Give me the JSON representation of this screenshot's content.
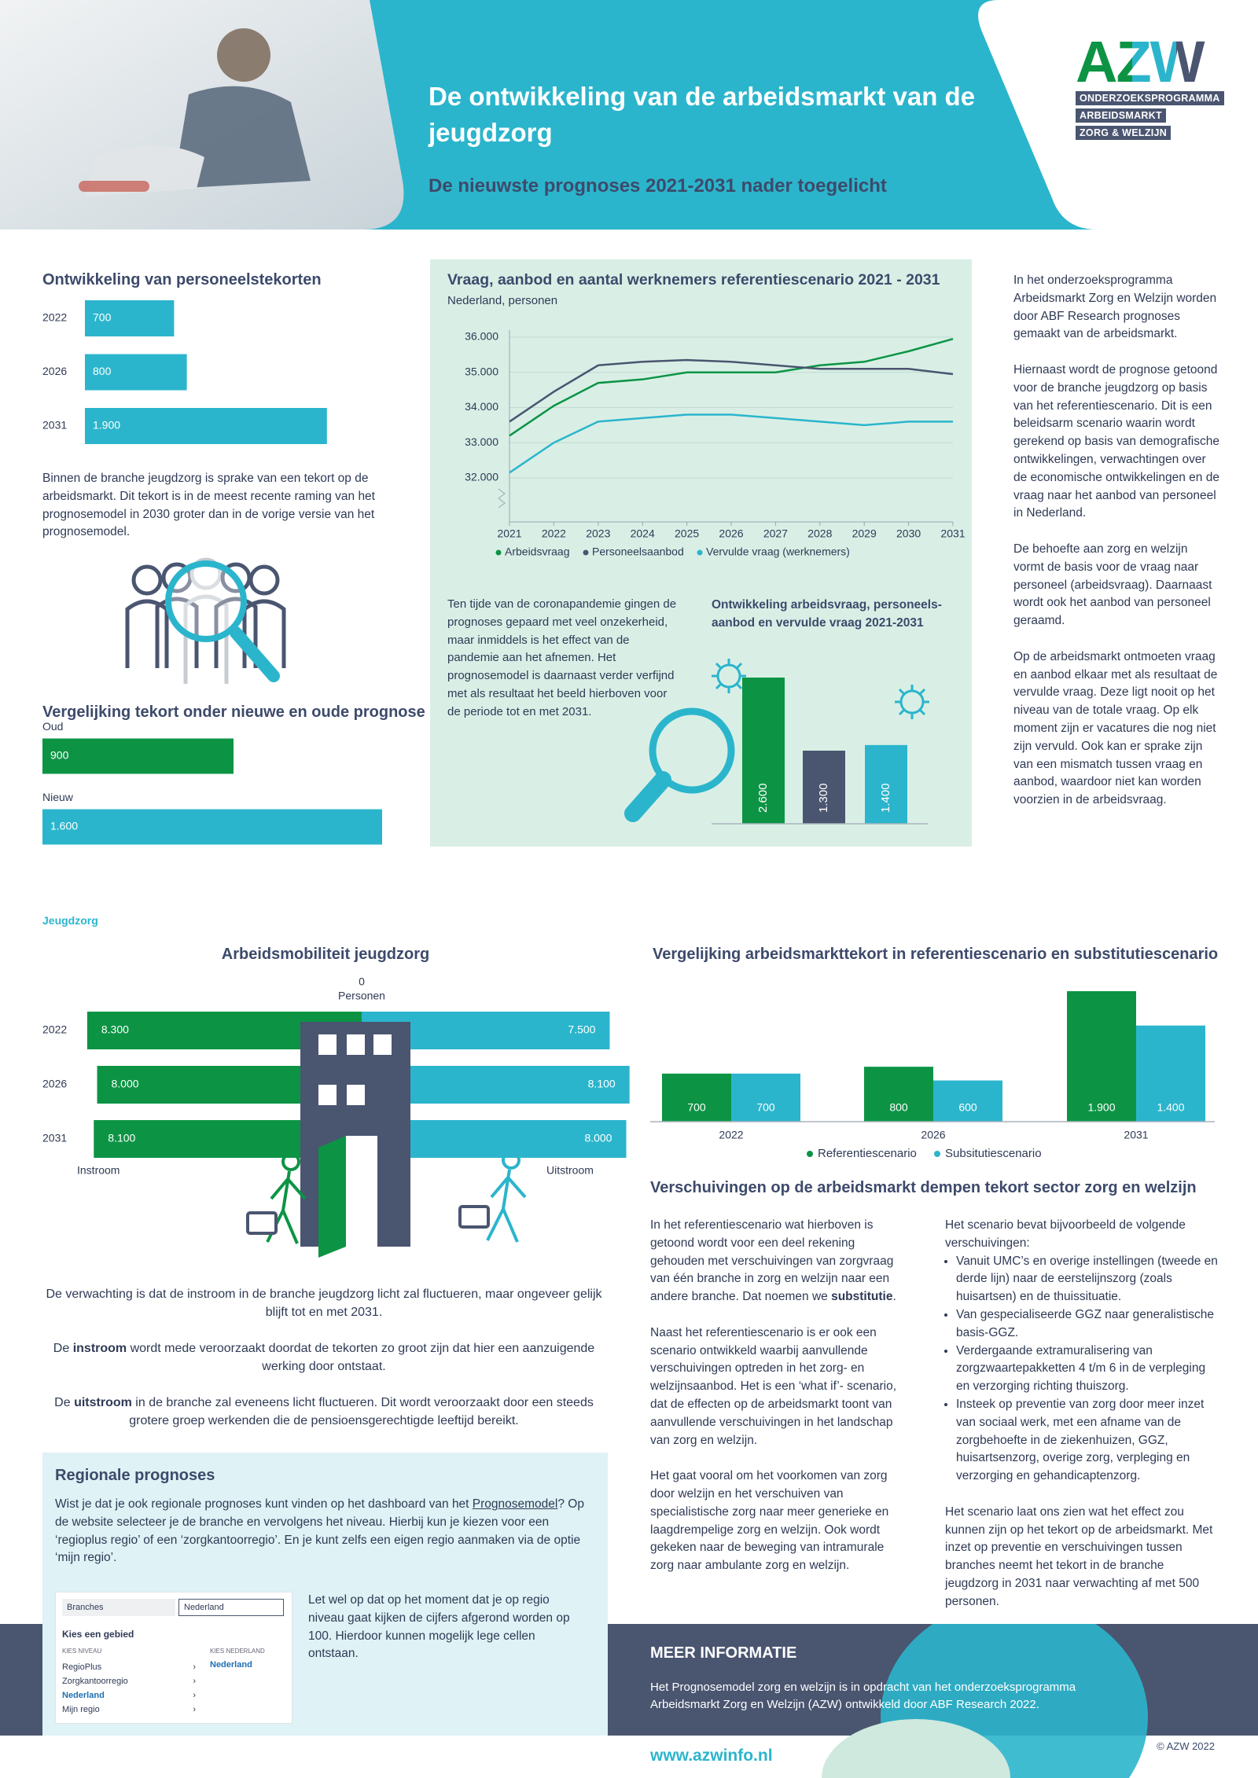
{
  "header": {
    "title": "De ontwikkeling van de arbeidsmarkt van de jeugdzorg",
    "subtitle": "De nieuwste prognoses 2021-2031 nader toegelicht"
  },
  "logo": {
    "mark": "AZW",
    "lines": [
      "ONDERZOEKSPROGRAMMA",
      "ARBEIDSMARKT",
      "ZORG & WELZIJN"
    ]
  },
  "chart_data": [
    {
      "type": "bar",
      "orientation": "horizontal",
      "title": "Ontwikkeling van personeelstekorten",
      "categories": [
        "2022",
        "2026",
        "2031"
      ],
      "values": [
        700,
        800,
        1900
      ],
      "value_labels": [
        "700",
        "800",
        "1.900"
      ],
      "color": "#2bb5cc"
    },
    {
      "type": "bar",
      "orientation": "horizontal",
      "title": "Vergelijking tekort onder nieuwe en oude prognose",
      "categories": [
        "Oud",
        "Nieuw"
      ],
      "values": [
        900,
        1600
      ],
      "value_labels": [
        "900",
        "1.600"
      ],
      "colors": [
        "#0c9444",
        "#2bb5cc"
      ]
    },
    {
      "type": "line",
      "title": "Vraag, aanbod en aantal werknemers referentiescenario 2021 - 2031",
      "subtitle": "Nederland, personen",
      "x": [
        2021,
        2022,
        2023,
        2024,
        2025,
        2026,
        2027,
        2028,
        2029,
        2030,
        2031
      ],
      "xlim": [
        2021,
        2031
      ],
      "ylim": [
        30750,
        36200
      ],
      "yticks": [
        {
          "value": 32000,
          "label": "32.000"
        },
        {
          "value": 33000,
          "label": "33.000"
        },
        {
          "value": 34000,
          "label": "34.000"
        },
        {
          "value": 35000,
          "label": "35.000"
        },
        {
          "value": 36000,
          "label": "36.000"
        }
      ],
      "grid": true,
      "series": [
        {
          "name": "Arbeidsvraag",
          "color": "#0c9444",
          "values": [
            33200,
            34050,
            34700,
            34800,
            35000,
            35000,
            35000,
            35200,
            35300,
            35600,
            35950
          ]
        },
        {
          "name": "Personeelsaanbod",
          "color": "#4a5570",
          "values": [
            33600,
            34450,
            35200,
            35300,
            35350,
            35300,
            35200,
            35100,
            35100,
            35100,
            34950
          ]
        },
        {
          "name": "Vervulde vraag (werknemers)",
          "color": "#2bb5cc",
          "values": [
            32150,
            33000,
            33600,
            33700,
            33800,
            33800,
            33700,
            33600,
            33500,
            33600,
            33600
          ]
        }
      ]
    },
    {
      "type": "bar",
      "title": "Ontwikkeling arbeidsvraag, personeels-aanbod en vervulde vraag 2021-2031",
      "values": [
        2600,
        1300,
        1400
      ],
      "value_labels": [
        "2.600",
        "1.300",
        "1.400"
      ],
      "colors": [
        "#0c9444",
        "#4a5570",
        "#2bb5cc"
      ]
    },
    {
      "type": "diverging-bar",
      "title": "Arbeidsmobiliteit jeugdzorg",
      "xlabel": "Personen",
      "xlim": [
        -9700,
        9700
      ],
      "xticks": [
        0
      ],
      "categories": [
        "2022",
        "2026",
        "2031"
      ],
      "series": [
        {
          "name": "Instroom",
          "color": "#0c9444",
          "values": [
            8300,
            8000,
            8100
          ],
          "value_labels": [
            "8.300",
            "8.000",
            "8.100"
          ]
        },
        {
          "name": "Uitstroom",
          "color": "#2bb5cc",
          "values": [
            7500,
            8100,
            8000
          ],
          "value_labels": [
            "7.500",
            "8.100",
            "8.000"
          ]
        }
      ]
    },
    {
      "type": "bar",
      "title": "Vergelijking arbeidsmarkttekort in referentiescenario en substitutiescenario",
      "categories": [
        "2022",
        "2026",
        "2031"
      ],
      "series": [
        {
          "name": "Referentiescenario",
          "color": "#0c9444",
          "values": [
            700,
            800,
            1900
          ],
          "value_labels": [
            "700",
            "800",
            "1.900"
          ]
        },
        {
          "name": "Subsitutiescenario",
          "color": "#2bb5cc",
          "values": [
            700,
            600,
            1400
          ],
          "value_labels": [
            "700",
            "600",
            "1.400"
          ]
        }
      ]
    }
  ],
  "texts": {
    "tekort": "Binnen de branche jeugdzorg is sprake van een tekort op de arbeidsmarkt. Dit tekort is in de meest recente raming van het prognosemodel in 2030 groter dan in de vorige versie van het prognosemodel.",
    "corona": "Ten tijde van de coronapandemie gingen de prognoses gepaard met veel onzekerheid, maar inmiddels is het effect van de pandemie aan het afnemen. Het prognosemodel is daarnaast verder verfijnd met als resultaat het beeld hierboven voor de periode tot en met 2031.",
    "about": [
      "In het onderzoeksprogramma Arbeidsmarkt Zorg en Welzijn worden door ABF Research prognoses gemaakt van de arbeidsmarkt.",
      "Hiernaast wordt de prognose getoond voor de branche jeugdzorg op basis van het referentiescenario. Dit is een beleidsarm scenario waarin wordt gerekend op basis van demografische ontwikkelingen, verwachtingen over de economische ontwikkelingen en de vraag naar het aanbod van personeel in Nederland.",
      "De behoefte aan zorg en welzijn vormt de basis voor de vraag naar personeel (arbeidsvraag). Daarnaast wordt ook het aanbod van personeel geraamd.",
      "Op de arbeidsmarkt ontmoeten vraag en aanbod elkaar met als resultaat de vervulde vraag. Deze ligt nooit op het niveau van de totale vraag. Op elk moment zijn er vacatures die nog niet zijn vervuld. Ook kan er sprake zijn van een mismatch tussen vraag en aanbod, waardoor niet kan worden voorzien in de arbeidsvraag."
    ],
    "section": "Jeugdzorg",
    "mobiliteit": [
      [
        "De verwachting is dat de instroom in de branche jeugdzorg licht zal fluctueren, maar ongeveer gelijk blijft tot en met 2031."
      ],
      [
        "De ",
        "instroom",
        " wordt mede veroorzaakt doordat de tekorten zo groot zijn dat hier een aanzuigende werking door ontstaat."
      ],
      [
        "De ",
        "uitstroom",
        " in de branche zal eveneens licht fluctueren. Dit wordt veroorzaakt door een steeds grotere groep werkenden die de pensioensgerechtigde leeftijd bereikt."
      ]
    ],
    "verschuivingen_title": "Verschuivingen op de arbeidsmarkt dempen tekort sector zorg en welzijn",
    "verschuivingen_left": [
      [
        "In het referentiescenario wat hierboven is getoond wordt voor een deel rekening gehouden met verschuivingen van zorgvraag van één branche in zorg en welzijn naar een andere branche. Dat noemen we ",
        "substitutie",
        "."
      ],
      [
        "Naast het referentiescenario is er ook een scenario ontwikkeld waarbij aanvullende verschuivingen optreden in het zorg- en welzijnsaanbod. Het is een ‘what if’- scenario, dat de effecten op de arbeidsmarkt toont van aanvullende verschuivingen in het landschap van zorg en welzijn."
      ],
      [
        "Het gaat vooral om het voorkomen van zorg door welzijn en het verschuiven van specialistische zorg naar meer generieke en laagdrempelige zorg en welzijn. Ook wordt gekeken naar de beweging van intramurale zorg naar ambulante zorg en welzijn."
      ]
    ],
    "verschuivingen_intro": "Het scenario bevat bijvoorbeeld de volgende verschuivingen:",
    "verschuivingen_bullets": [
      "Vanuit UMC’s en overige instellingen (tweede en derde lijn) naar de eerstelijnszorg (zoals huisartsen) en de thuissituatie.",
      "Van gespecialiseerde GGZ naar generalistische basis-GGZ.",
      "Verdergaande extramuralisering van zorgzwaartepakketten 4 t/m 6 in de verpleging en verzorging richting thuiszorg.",
      "Insteek op preventie van zorg door meer inzet van sociaal werk, met een afname van de zorgbehoefte in de ziekenhuizen, GGZ, huisartsenzorg, overige zorg, verpleging en verzorging en gehandicaptenzorg."
    ],
    "verschuivingen_closing": "Het scenario laat ons zien wat het effect zou kunnen zijn op het tekort op de arbeidsmarkt. Met inzet op preventie en verschuivingen tussen branches neemt het tekort in de branche jeugdzorg in 2031 naar verwachting af met 500 personen."
  },
  "regionaal": {
    "title": "Regionale prognoses",
    "text": [
      "Wist je dat je ook regionale prognoses kunt vinden op het dashboard van het ",
      "Prognosemodel",
      "? Op de website selecteer je de branche en vervolgens het niveau. Hierbij kun je kiezen voor een ‘regioplus regio’ of een ‘zorgkantoorregio’. En je kunt zelfs een eigen regio aanmaken via de optie ‘mijn regio’."
    ],
    "note": "Let wel op dat op het moment dat je op regio niveau gaat kijken de cijfers afgerond worden op 100. Hierdoor kunnen mogelijk lege cellen ontstaan.",
    "screenshot": {
      "dropdown": "Branches",
      "search": "Nederland",
      "heading": "Kies een gebied",
      "col1_title": "KIES NIVEAU",
      "options": [
        "RegioPlus",
        "Zorgkantoorregio",
        "Nederland",
        "Mijn regio"
      ],
      "col2_title": "KIES NEDERLAND",
      "col2_value": "Nederland"
    }
  },
  "footer": {
    "title": "MEER INFORMATIE",
    "text": "Het Prognosemodel zorg en welzijn is in opdracht van het onderzoeksprogramma Arbeidsmarkt Zorg en Welzijn (AZW) ontwikkeld door ABF Research 2022.",
    "url": "www.azwinfo.nl",
    "copyright": "© AZW 2022"
  }
}
